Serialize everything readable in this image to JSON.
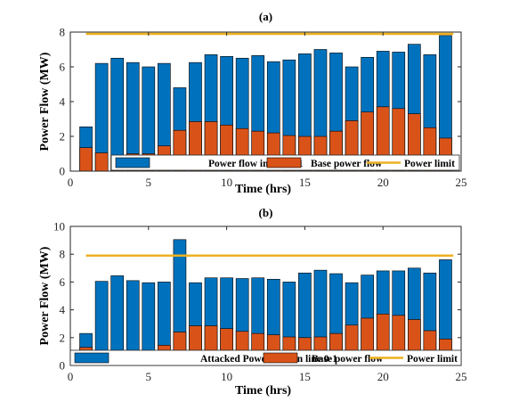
{
  "chart_data": [
    {
      "type": "bar",
      "title": "(a)",
      "xlabel": "Time (hrs)",
      "ylabel": "Power Flow (MW)",
      "xlim": [
        0,
        25
      ],
      "ylim": [
        0,
        8
      ],
      "xticks": [
        "0",
        "5",
        "10",
        "15",
        "20",
        "25"
      ],
      "yticks": [
        "0",
        "2",
        "4",
        "6",
        "8"
      ],
      "grid": false,
      "legend_position": "bottom-right",
      "x": [
        1,
        2,
        3,
        4,
        5,
        6,
        7,
        8,
        9,
        10,
        11,
        12,
        13,
        14,
        15,
        16,
        17,
        18,
        19,
        20,
        21,
        22,
        23,
        24
      ],
      "series": [
        {
          "name": "Power flow in line 0-1",
          "color": "#0072BD",
          "values": [
            2.55,
            6.2,
            6.5,
            6.25,
            6.0,
            6.2,
            4.8,
            6.25,
            6.7,
            6.6,
            6.5,
            6.65,
            6.3,
            6.4,
            6.75,
            7.0,
            6.8,
            6.0,
            6.55,
            6.9,
            6.85,
            7.3,
            6.7,
            7.8
          ]
        },
        {
          "name": "Base power flow",
          "color": "#D95319",
          "values": [
            1.35,
            1.05,
            0.9,
            1.0,
            1.0,
            1.45,
            2.35,
            2.85,
            2.85,
            2.65,
            2.45,
            2.3,
            2.2,
            2.05,
            2.0,
            2.0,
            2.3,
            2.9,
            3.4,
            3.7,
            3.6,
            3.3,
            2.5,
            1.9
          ]
        },
        {
          "name": "Power limit",
          "color": "#EDB120",
          "type": "line",
          "x": [
            1,
            24.5
          ],
          "values": [
            7.9,
            7.9
          ]
        }
      ]
    },
    {
      "type": "bar",
      "title": "(b)",
      "xlabel": "Time (hrs)",
      "ylabel": "Power Flow (MW)",
      "xlim": [
        0,
        25
      ],
      "ylim": [
        0,
        10
      ],
      "xticks": [
        "0",
        "5",
        "10",
        "15",
        "20",
        "25"
      ],
      "yticks": [
        "0",
        "2",
        "4",
        "6",
        "8",
        "10"
      ],
      "grid": false,
      "legend_position": "bottom",
      "x": [
        1,
        2,
        3,
        4,
        5,
        6,
        7,
        8,
        9,
        10,
        11,
        12,
        13,
        14,
        15,
        16,
        17,
        18,
        19,
        20,
        21,
        22,
        23,
        24
      ],
      "series": [
        {
          "name": "Attacked Power flow in line 0-1",
          "color": "#0072BD",
          "values": [
            2.3,
            6.05,
            6.45,
            6.1,
            5.95,
            6.0,
            9.05,
            5.95,
            6.3,
            6.3,
            6.25,
            6.3,
            6.2,
            6.0,
            6.65,
            6.85,
            6.6,
            5.95,
            6.5,
            6.8,
            6.8,
            7.0,
            6.65,
            7.6
          ]
        },
        {
          "name": "Base power flow",
          "color": "#D95319",
          "values": [
            1.3,
            1.05,
            0.9,
            1.0,
            1.0,
            1.45,
            2.4,
            2.85,
            2.85,
            2.65,
            2.45,
            2.3,
            2.2,
            2.05,
            2.0,
            2.05,
            2.3,
            2.9,
            3.4,
            3.7,
            3.6,
            3.3,
            2.5,
            1.9
          ]
        },
        {
          "name": "Power limit",
          "color": "#EDB120",
          "type": "line",
          "x": [
            1,
            24.5
          ],
          "values": [
            7.9,
            7.9
          ]
        }
      ]
    }
  ]
}
